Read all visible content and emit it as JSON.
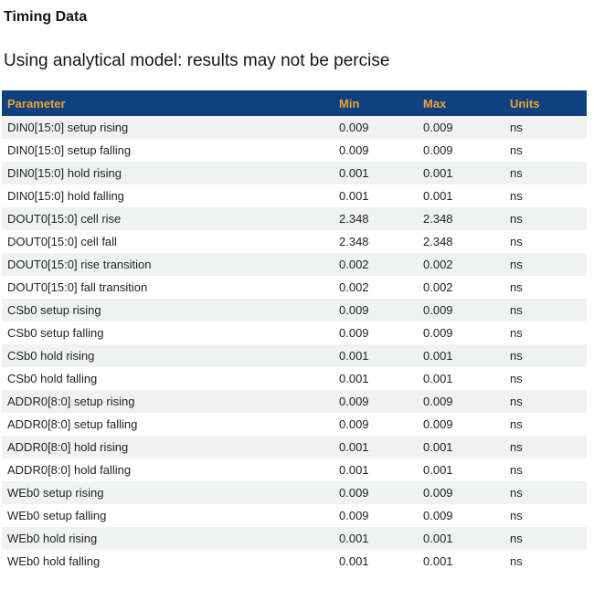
{
  "page": {
    "title": "Timing Data",
    "subtitle": "Using analytical model: results may not be percise"
  },
  "table": {
    "columns": [
      "Parameter",
      "Min",
      "Max",
      "Units"
    ],
    "rows": [
      {
        "parameter": "DIN0[15:0] setup rising",
        "min": "0.009",
        "max": "0.009",
        "units": "ns"
      },
      {
        "parameter": "DIN0[15:0] setup falling",
        "min": "0.009",
        "max": "0.009",
        "units": "ns"
      },
      {
        "parameter": "DIN0[15:0] hold rising",
        "min": "0.001",
        "max": "0.001",
        "units": "ns"
      },
      {
        "parameter": "DIN0[15:0] hold falling",
        "min": "0.001",
        "max": "0.001",
        "units": "ns"
      },
      {
        "parameter": "DOUT0[15:0] cell rise",
        "min": "2.348",
        "max": "2.348",
        "units": "ns"
      },
      {
        "parameter": "DOUT0[15:0] cell fall",
        "min": "2.348",
        "max": "2.348",
        "units": "ns"
      },
      {
        "parameter": "DOUT0[15:0] rise transition",
        "min": "0.002",
        "max": "0.002",
        "units": "ns"
      },
      {
        "parameter": "DOUT0[15:0] fall transition",
        "min": "0.002",
        "max": "0.002",
        "units": "ns"
      },
      {
        "parameter": "CSb0 setup rising",
        "min": "0.009",
        "max": "0.009",
        "units": "ns"
      },
      {
        "parameter": "CSb0 setup falling",
        "min": "0.009",
        "max": "0.009",
        "units": "ns"
      },
      {
        "parameter": "CSb0 hold rising",
        "min": "0.001",
        "max": "0.001",
        "units": "ns"
      },
      {
        "parameter": "CSb0 hold falling",
        "min": "0.001",
        "max": "0.001",
        "units": "ns"
      },
      {
        "parameter": "ADDR0[8:0] setup rising",
        "min": "0.009",
        "max": "0.009",
        "units": "ns"
      },
      {
        "parameter": "ADDR0[8:0] setup falling",
        "min": "0.009",
        "max": "0.009",
        "units": "ns"
      },
      {
        "parameter": "ADDR0[8:0] hold rising",
        "min": "0.001",
        "max": "0.001",
        "units": "ns"
      },
      {
        "parameter": "ADDR0[8:0] hold falling",
        "min": "0.001",
        "max": "0.001",
        "units": "ns"
      },
      {
        "parameter": "WEb0 setup rising",
        "min": "0.009",
        "max": "0.009",
        "units": "ns"
      },
      {
        "parameter": "WEb0 setup falling",
        "min": "0.009",
        "max": "0.009",
        "units": "ns"
      },
      {
        "parameter": "WEb0 hold rising",
        "min": "0.001",
        "max": "0.001",
        "units": "ns"
      },
      {
        "parameter": "WEb0 hold falling",
        "min": "0.001",
        "max": "0.001",
        "units": "ns"
      }
    ]
  },
  "colors": {
    "header_bg": "#0e4180",
    "header_text": "#f0a431",
    "row_alt_bg": "#f0f2f2",
    "body_text": "#222222"
  }
}
